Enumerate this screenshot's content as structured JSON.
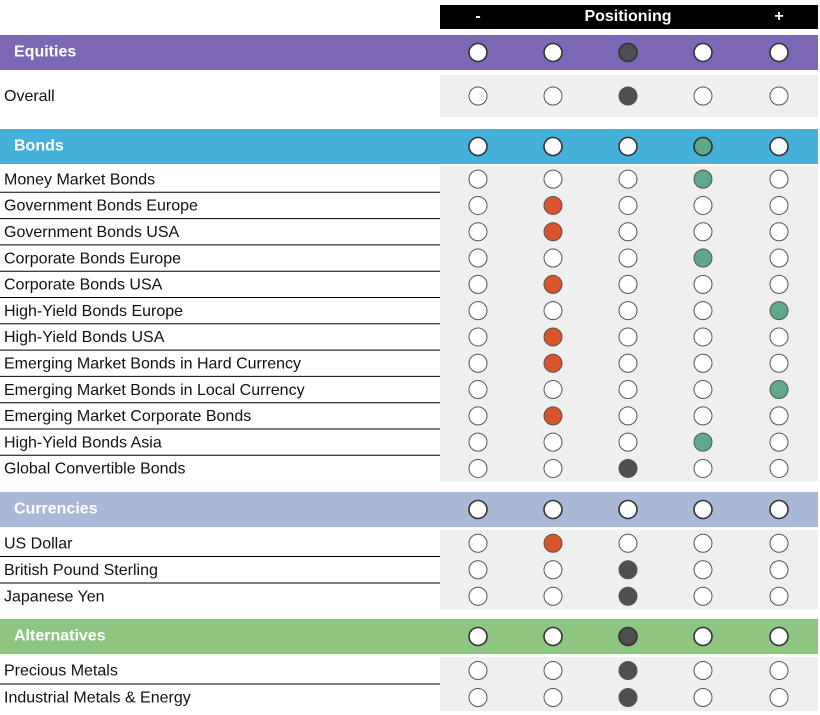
{
  "header": {
    "minus": "-",
    "title": "Positioning",
    "plus": "+"
  },
  "sections": [
    {
      "title": "Equities",
      "color": "#7b67b3",
      "position": 3,
      "dot_color": "#4f4f4f",
      "rows": [
        {
          "label": "Overall",
          "position": 3,
          "color": "#4f4f4f"
        }
      ]
    },
    {
      "title": "Bonds",
      "color": "#45b0da",
      "position": 4,
      "dot_color": "#5fa88a",
      "rows": [
        {
          "label": "Money Market Bonds",
          "position": 4,
          "color": "#5fa88a"
        },
        {
          "label": "Government Bonds Europe",
          "position": 2,
          "color": "#d9532b"
        },
        {
          "label": "Government Bonds USA",
          "position": 2,
          "color": "#d9532b"
        },
        {
          "label": "Corporate Bonds Europe",
          "position": 4,
          "color": "#5fa88a"
        },
        {
          "label": "Corporate Bonds USA",
          "position": 2,
          "color": "#d9532b"
        },
        {
          "label": "High-Yield Bonds Europe",
          "position": 5,
          "color": "#5fa88a"
        },
        {
          "label": "High-Yield Bonds USA",
          "position": 2,
          "color": "#d9532b"
        },
        {
          "label": "Emerging Market Bonds in Hard Currency",
          "position": 2,
          "color": "#d9532b"
        },
        {
          "label": "Emerging Market Bonds in Local Currency",
          "position": 5,
          "color": "#5fa88a"
        },
        {
          "label": "Emerging Market Corporate Bonds",
          "position": 2,
          "color": "#d9532b"
        },
        {
          "label": "High-Yield Bonds Asia",
          "position": 4,
          "color": "#5fa88a"
        },
        {
          "label": "Global Convertible Bonds",
          "position": 3,
          "color": "#4f4f4f"
        }
      ]
    },
    {
      "title": "Currencies",
      "color": "#aab8d8",
      "position": null,
      "dot_color": null,
      "rows": [
        {
          "label": "US Dollar",
          "position": 2,
          "color": "#d9532b"
        },
        {
          "label": "British Pound Sterling",
          "position": 3,
          "color": "#4f4f4f"
        },
        {
          "label": "Japanese Yen",
          "position": 3,
          "color": "#4f4f4f"
        }
      ]
    },
    {
      "title": "Alternatives",
      "color": "#8dc680",
      "position": 3,
      "dot_color": "#4f4f4f",
      "rows": [
        {
          "label": "Precious Metals",
          "position": 3,
          "color": "#4f4f4f"
        },
        {
          "label": "Industrial Metals & Energy",
          "position": 3,
          "color": "#4f4f4f"
        }
      ]
    }
  ]
}
